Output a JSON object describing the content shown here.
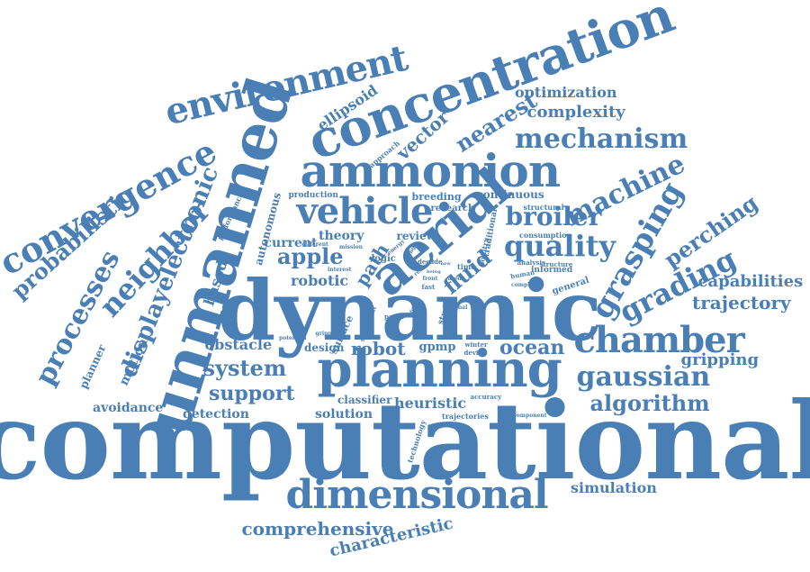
{
  "color": "#4a7fb5",
  "words": [
    "computational",
    "dynamic",
    "planning",
    "unmanned",
    "concentration",
    "ammonion",
    "aerial",
    "dimensional",
    "environment",
    "convergence",
    "chamber",
    "vehicle",
    "mechanism",
    "grasping",
    "quality",
    "broiler",
    "neighbor",
    "processes",
    "displayelectronic",
    "probabilistic",
    "machine",
    "grading",
    "gaussian",
    "algorithm",
    "system",
    "support",
    "perching",
    "trajectory",
    "capabilities",
    "gripping",
    "comprehensive",
    "characteristic",
    "simulation",
    "optimization",
    "complexity",
    "fluid",
    "apple",
    "ocean",
    "robot",
    "robotic",
    "obstacle",
    "heuristic",
    "solution",
    "detection",
    "avoidance",
    "motion",
    "planner",
    "based",
    "nearest",
    "vector",
    "ellipsoid",
    "path",
    "autonomous",
    "current",
    "theory",
    "review",
    "classifier",
    "continuous",
    "breeding",
    "research",
    "production",
    "logic",
    "design",
    "gpmp",
    "surface",
    "performance",
    "approach",
    "consumption",
    "structural",
    "structure",
    "analysis",
    "informed",
    "general",
    "trajectories",
    "technology",
    "accuracy",
    "component",
    "winter",
    "device",
    "human",
    "complex",
    "study",
    "paper",
    "significant",
    "potential",
    "gripper",
    "interest",
    "different",
    "mission",
    "time",
    "decade",
    "poultry",
    "traditional",
    "fast",
    "front",
    "internal",
    "energy",
    "range",
    "reduced",
    "first",
    "being",
    "used",
    "new"
  ]
}
